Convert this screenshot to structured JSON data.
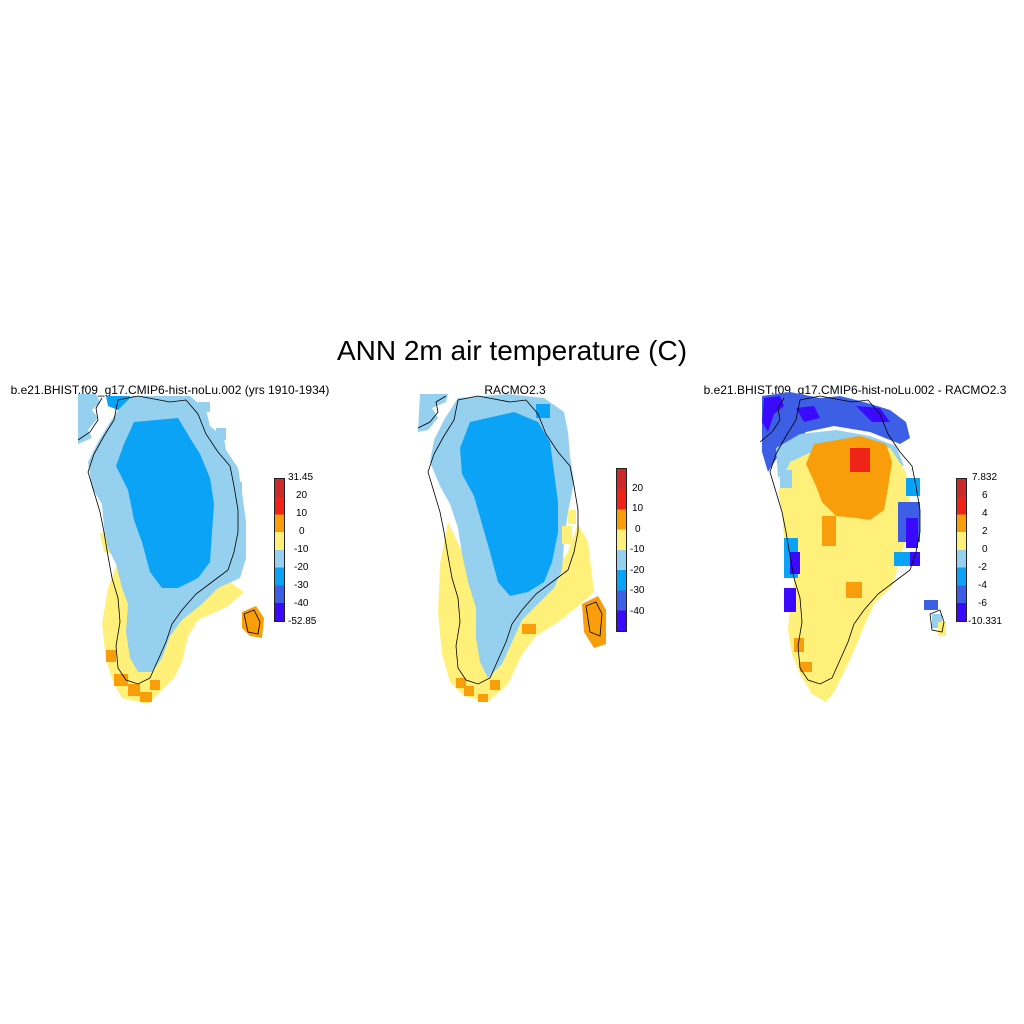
{
  "title": "ANN 2m air temperature (C)",
  "panels": [
    {
      "title": "b.e21.BHIST.f09_g17.CMIP6-hist-noLu.002 (yrs 1910-1934)",
      "colorbar": {
        "colors": [
          "#3a0aff",
          "#3d5fe6",
          "#0aa3f5",
          "#95d0ef",
          "#fff07a",
          "#f79e0a",
          "#f02318",
          "#cc2a2a"
        ],
        "labels": [
          "-52.85",
          "-40",
          "-30",
          "-20",
          "-10",
          "0",
          "10",
          "20",
          "31.45"
        ]
      }
    },
    {
      "title": "RACMO2.3",
      "colorbar": {
        "colors": [
          "#3a0aff",
          "#3d5fe6",
          "#0aa3f5",
          "#95d0ef",
          "#fff07a",
          "#f79e0a",
          "#f02318",
          "#cc2a2a"
        ],
        "labels": [
          "-40",
          "-30",
          "-20",
          "-10",
          "0",
          "10",
          "20"
        ]
      }
    },
    {
      "title": "b.e21.BHIST.f09_g17.CMIP6-hist-noLu.002 - RACMO2.3",
      "colorbar": {
        "colors": [
          "#3a0aff",
          "#3d5fe6",
          "#0aa3f5",
          "#95d0ef",
          "#fff07a",
          "#f79e0a",
          "#f02318",
          "#cc2a2a"
        ],
        "labels": [
          "-10.331",
          "-6",
          "-4",
          "-2",
          "0",
          "2",
          "4",
          "6",
          "7.832"
        ]
      }
    }
  ]
}
